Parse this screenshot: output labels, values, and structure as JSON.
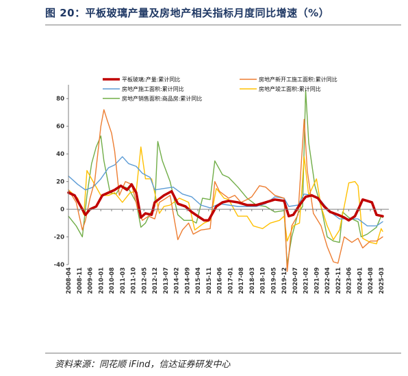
{
  "page": {
    "title": "图 20：平板玻璃产量及房地产相关指标月度同比增速（%）",
    "source": "资料来源：同花顺 iFind，信达证券研发中心"
  },
  "chart_data": {
    "type": "line",
    "title": "",
    "xlabel": "",
    "ylabel": "",
    "ylim": [
      -40,
      90
    ],
    "yticks": [
      -40,
      -20,
      0,
      20,
      40,
      60,
      80
    ],
    "x_tick_labels": [
      "2008-04",
      "2008-11",
      "2009-06",
      "2010-01",
      "2010-08",
      "2011-03",
      "2011-10",
      "2012-05",
      "2012-12",
      "2013-07",
      "2014-02",
      "2014-09",
      "2015-04",
      "2015-11",
      "2016-06",
      "2017-01",
      "2017-08",
      "2018-03",
      "2018-10",
      "2019-05",
      "2019-12",
      "2020-07",
      "2021-02",
      "2021-09",
      "2022-04",
      "2022-11",
      "2023-06",
      "2024-01",
      "2024-08",
      "2025-03"
    ],
    "grid": false,
    "legend_position": "top",
    "series": [
      {
        "name": "平板玻璃:产量:累计同比",
        "color": "#c00000",
        "points": [
          [
            "2008-04",
            12
          ],
          [
            "2008-08",
            10
          ],
          [
            "2008-12",
            2
          ],
          [
            "2009-03",
            -4
          ],
          [
            "2009-06",
            0
          ],
          [
            "2009-10",
            2
          ],
          [
            "2010-02",
            10
          ],
          [
            "2010-06",
            12
          ],
          [
            "2010-10",
            14
          ],
          [
            "2011-02",
            17
          ],
          [
            "2011-06",
            14
          ],
          [
            "2011-09",
            18
          ],
          [
            "2011-12",
            12
          ],
          [
            "2012-03",
            -6
          ],
          [
            "2012-06",
            -3
          ],
          [
            "2012-10",
            -4
          ],
          [
            "2012-12",
            5
          ],
          [
            "2013-06",
            10
          ],
          [
            "2013-11",
            13
          ],
          [
            "2014-03",
            4
          ],
          [
            "2014-08",
            2
          ],
          [
            "2014-12",
            -2
          ],
          [
            "2015-04",
            -5
          ],
          [
            "2015-08",
            -8
          ],
          [
            "2015-11",
            -8
          ],
          [
            "2016-04",
            2
          ],
          [
            "2016-08",
            5
          ],
          [
            "2016-12",
            6
          ],
          [
            "2017-06",
            5
          ],
          [
            "2017-12",
            3
          ],
          [
            "2018-06",
            3
          ],
          [
            "2018-12",
            5
          ],
          [
            "2019-06",
            7
          ],
          [
            "2019-12",
            6
          ],
          [
            "2020-03",
            -5
          ],
          [
            "2020-06",
            -4
          ],
          [
            "2020-10",
            3
          ],
          [
            "2021-02",
            9
          ],
          [
            "2021-06",
            10
          ],
          [
            "2021-10",
            8
          ],
          [
            "2022-02",
            2
          ],
          [
            "2022-06",
            -2
          ],
          [
            "2022-11",
            -4
          ],
          [
            "2023-03",
            -6
          ],
          [
            "2023-06",
            -8
          ],
          [
            "2023-10",
            -5
          ],
          [
            "2024-01",
            2
          ],
          [
            "2024-03",
            7
          ],
          [
            "2024-06",
            6
          ],
          [
            "2024-09",
            5
          ],
          [
            "2024-12",
            -4
          ],
          [
            "2025-04",
            -5
          ]
        ]
      },
      {
        "name": "房地产新开工施工面积:累计同比",
        "color": "#ed7d31",
        "points": [
          [
            "2008-04",
            14
          ],
          [
            "2008-09",
            5
          ],
          [
            "2009-01",
            -15
          ],
          [
            "2009-03",
            -8
          ],
          [
            "2009-06",
            8
          ],
          [
            "2009-09",
            20
          ],
          [
            "2010-01",
            60
          ],
          [
            "2010-03",
            72
          ],
          [
            "2010-05",
            65
          ],
          [
            "2010-08",
            55
          ],
          [
            "2010-10",
            42
          ],
          [
            "2011-01",
            10
          ],
          [
            "2011-05",
            20
          ],
          [
            "2011-09",
            18
          ],
          [
            "2012-01",
            0
          ],
          [
            "2012-04",
            -8
          ],
          [
            "2012-08",
            -5
          ],
          [
            "2012-12",
            -7
          ],
          [
            "2013-03",
            5
          ],
          [
            "2013-06",
            7
          ],
          [
            "2013-10",
            10
          ],
          [
            "2014-03",
            -22
          ],
          [
            "2014-06",
            -15
          ],
          [
            "2014-10",
            -10
          ],
          [
            "2015-01",
            -18
          ],
          [
            "2015-06",
            -15
          ],
          [
            "2015-12",
            -14
          ],
          [
            "2016-03",
            20
          ],
          [
            "2016-06",
            13
          ],
          [
            "2016-12",
            8
          ],
          [
            "2017-04",
            10
          ],
          [
            "2017-08",
            5
          ],
          [
            "2017-12",
            7
          ],
          [
            "2018-03",
            9
          ],
          [
            "2018-08",
            17
          ],
          [
            "2018-12",
            16
          ],
          [
            "2019-06",
            10
          ],
          [
            "2019-12",
            8
          ],
          [
            "2020-02",
            -45
          ],
          [
            "2020-05",
            -12
          ],
          [
            "2020-09",
            -4
          ],
          [
            "2021-01",
            65
          ],
          [
            "2021-03",
            28
          ],
          [
            "2021-07",
            -3
          ],
          [
            "2021-12",
            -12
          ],
          [
            "2022-04",
            -27
          ],
          [
            "2022-08",
            -38
          ],
          [
            "2022-11",
            -39
          ],
          [
            "2023-03",
            -20
          ],
          [
            "2023-08",
            -24
          ],
          [
            "2023-12",
            -21
          ],
          [
            "2024-03",
            -28
          ],
          [
            "2024-08",
            -23
          ],
          [
            "2024-12",
            -23
          ],
          [
            "2025-04",
            -20
          ]
        ]
      },
      {
        "name": "房地产施工面积:累计同比",
        "color": "#5b9bd5",
        "points": [
          [
            "2008-04",
            24
          ],
          [
            "2008-10",
            18
          ],
          [
            "2009-03",
            14
          ],
          [
            "2009-08",
            16
          ],
          [
            "2010-01",
            22
          ],
          [
            "2010-06",
            30
          ],
          [
            "2010-10",
            32
          ],
          [
            "2011-03",
            38
          ],
          [
            "2011-07",
            33
          ],
          [
            "2011-12",
            31
          ],
          [
            "2012-04",
            26
          ],
          [
            "2012-09",
            23
          ],
          [
            "2012-12",
            14
          ],
          [
            "2013-06",
            15
          ],
          [
            "2013-12",
            16
          ],
          [
            "2014-06",
            11
          ],
          [
            "2014-12",
            9
          ],
          [
            "2015-06",
            3
          ],
          [
            "2015-12",
            1
          ],
          [
            "2016-06",
            4
          ],
          [
            "2016-12",
            3
          ],
          [
            "2017-06",
            2
          ],
          [
            "2017-12",
            2
          ],
          [
            "2018-06",
            2
          ],
          [
            "2018-12",
            4
          ],
          [
            "2019-06",
            9
          ],
          [
            "2019-12",
            8
          ],
          [
            "2020-03",
            2
          ],
          [
            "2020-09",
            3
          ],
          [
            "2021-01",
            11
          ],
          [
            "2021-06",
            10
          ],
          [
            "2021-12",
            6
          ],
          [
            "2022-06",
            -2
          ],
          [
            "2022-12",
            -7
          ],
          [
            "2023-06",
            -7
          ],
          [
            "2023-12",
            -7
          ],
          [
            "2024-06",
            -12
          ],
          [
            "2024-12",
            -12
          ],
          [
            "2025-04",
            -9
          ]
        ]
      },
      {
        "name": "房地产竣工面积:累计同比",
        "color": "#ffc000",
        "points": [
          [
            "2008-04",
            14
          ],
          [
            "2008-10",
            8
          ],
          [
            "2009-02",
            -4
          ],
          [
            "2009-04",
            28
          ],
          [
            "2009-08",
            20
          ],
          [
            "2010-01",
            10
          ],
          [
            "2010-06",
            10
          ],
          [
            "2010-10",
            12
          ],
          [
            "2011-03",
            5
          ],
          [
            "2011-08",
            12
          ],
          [
            "2011-12",
            13
          ],
          [
            "2012-03",
            45
          ],
          [
            "2012-06",
            22
          ],
          [
            "2012-10",
            22
          ],
          [
            "2013-03",
            -3
          ],
          [
            "2013-06",
            2
          ],
          [
            "2013-10",
            3
          ],
          [
            "2014-04",
            8
          ],
          [
            "2014-10",
            5
          ],
          [
            "2015-02",
            -15
          ],
          [
            "2015-08",
            -10
          ],
          [
            "2015-12",
            -8
          ],
          [
            "2016-04",
            15
          ],
          [
            "2016-09",
            8
          ],
          [
            "2016-12",
            7
          ],
          [
            "2017-06",
            -5
          ],
          [
            "2017-12",
            -5
          ],
          [
            "2018-04",
            -12
          ],
          [
            "2018-10",
            -14
          ],
          [
            "2019-03",
            -10
          ],
          [
            "2019-09",
            -8
          ],
          [
            "2019-12",
            -5
          ],
          [
            "2020-02",
            -23
          ],
          [
            "2020-06",
            -12
          ],
          [
            "2020-10",
            -10
          ],
          [
            "2021-01",
            38
          ],
          [
            "2021-04",
            10
          ],
          [
            "2021-09",
            22
          ],
          [
            "2021-12",
            2
          ],
          [
            "2022-04",
            -12
          ],
          [
            "2022-08",
            -22
          ],
          [
            "2022-12",
            -15
          ],
          [
            "2023-03",
            2
          ],
          [
            "2023-06",
            19
          ],
          [
            "2023-10",
            20
          ],
          [
            "2023-12",
            17
          ],
          [
            "2024-03",
            -21
          ],
          [
            "2024-08",
            -24
          ],
          [
            "2024-12",
            -25
          ],
          [
            "2025-03",
            -14
          ],
          [
            "2025-04",
            -16
          ]
        ]
      },
      {
        "name": "房地产销售面积:商品房:累计同比",
        "color": "#70ad47",
        "points": [
          [
            "2008-04",
            -5
          ],
          [
            "2008-09",
            -12
          ],
          [
            "2009-01",
            -20
          ],
          [
            "2009-04",
            10
          ],
          [
            "2009-07",
            33
          ],
          [
            "2009-10",
            45
          ],
          [
            "2010-01",
            53
          ],
          [
            "2010-03",
            35
          ],
          [
            "2010-07",
            12
          ],
          [
            "2010-11",
            11
          ],
          [
            "2011-02",
            17
          ],
          [
            "2011-07",
            15
          ],
          [
            "2011-12",
            5
          ],
          [
            "2012-03",
            -13
          ],
          [
            "2012-06",
            -10
          ],
          [
            "2012-09",
            -3
          ],
          [
            "2012-12",
            2
          ],
          [
            "2013-02",
            49
          ],
          [
            "2013-05",
            35
          ],
          [
            "2013-10",
            20
          ],
          [
            "2014-03",
            -4
          ],
          [
            "2014-07",
            -8
          ],
          [
            "2014-12",
            -8
          ],
          [
            "2015-03",
            -10
          ],
          [
            "2015-07",
            8
          ],
          [
            "2015-12",
            7
          ],
          [
            "2016-03",
            35
          ],
          [
            "2016-08",
            25
          ],
          [
            "2016-12",
            23
          ],
          [
            "2017-06",
            16
          ],
          [
            "2017-12",
            8
          ],
          [
            "2018-06",
            3
          ],
          [
            "2018-12",
            2
          ],
          [
            "2019-06",
            -2
          ],
          [
            "2019-12",
            -1
          ],
          [
            "2020-02",
            -40
          ],
          [
            "2020-05",
            -20
          ],
          [
            "2020-09",
            -3
          ],
          [
            "2020-12",
            2
          ],
          [
            "2021-02",
            86
          ],
          [
            "2021-04",
            48
          ],
          [
            "2021-08",
            17
          ],
          [
            "2021-12",
            2
          ],
          [
            "2022-04",
            -20
          ],
          [
            "2022-08",
            -23
          ],
          [
            "2022-12",
            -24
          ],
          [
            "2023-02",
            -2
          ],
          [
            "2023-06",
            -6
          ],
          [
            "2023-12",
            -9
          ],
          [
            "2024-02",
            -20
          ],
          [
            "2024-06",
            -18
          ],
          [
            "2024-12",
            -13
          ],
          [
            "2025-03",
            -5
          ],
          [
            "2025-04",
            -6
          ]
        ]
      }
    ]
  }
}
